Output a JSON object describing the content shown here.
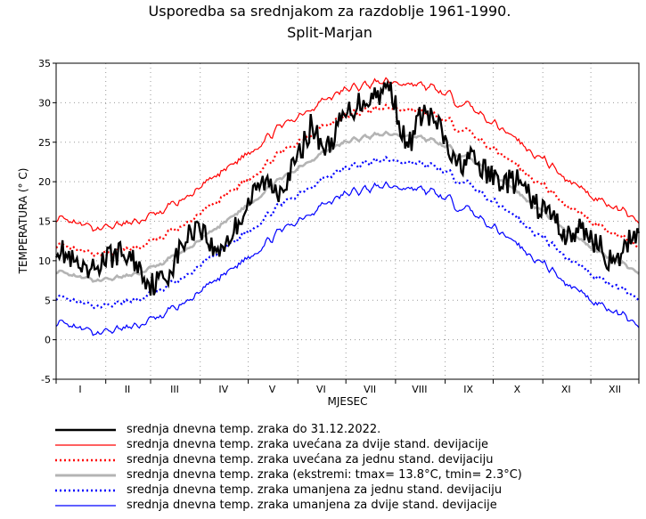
{
  "chart_data": {
    "type": "line",
    "title": "Usporedba sa srednjakom za razdoblje 1961-1990.",
    "subtitle": "Split-Marjan",
    "xlabel": "MJESEC",
    "ylabel": "TEMPERATURA (° C)",
    "ylim": [
      -5,
      35
    ],
    "yticks": [
      -5,
      0,
      5,
      10,
      15,
      20,
      25,
      30,
      35
    ],
    "xlim": [
      1,
      365
    ],
    "months": [
      "I",
      "II",
      "III",
      "IV",
      "V",
      "VI",
      "VII",
      "VIII",
      "IX",
      "X",
      "XI",
      "XII"
    ],
    "grid": true,
    "legend_position": "bottom",
    "climatology": {
      "t_max_day": 210,
      "t_min": 7.6,
      "t_max": 26.0,
      "std_dev_estimate": 3.3,
      "note": "mean curve and ±1/±2 std bands estimated from the figure"
    },
    "series": [
      {
        "key": "obs",
        "name": "srednja dnevna temp. zraka do 31.12.2022.",
        "color": "#000000",
        "style": "solid-thick",
        "x": [
          1,
          10,
          20,
          30,
          40,
          50,
          60,
          70,
          80,
          90,
          100,
          110,
          120,
          130,
          140,
          150,
          160,
          170,
          180,
          190,
          200,
          210,
          220,
          230,
          240,
          250,
          260,
          270,
          280,
          290,
          300,
          310,
          320,
          330,
          340,
          350,
          360,
          365
        ],
        "values": [
          12,
          10,
          8,
          10,
          11,
          10,
          7,
          8,
          12,
          15,
          11,
          13,
          17,
          20,
          19,
          22,
          27,
          24,
          28,
          30,
          31,
          32,
          24,
          29,
          27,
          22,
          23,
          21,
          20,
          20,
          17,
          16,
          13,
          14,
          12,
          9,
          13,
          14
        ]
      },
      {
        "key": "p2",
        "name": "srednja dnevna temp. zraka uvećana za dvije stand. devijacije",
        "color": "#ff0000",
        "style": "solid"
      },
      {
        "key": "p1",
        "name": "srednja dnevna temp. zraka uvećana za jednu stand. devijaciju",
        "color": "#ff0000",
        "style": "dotted"
      },
      {
        "key": "mean",
        "name": "srednja dnevna temp. zraka (ekstremi: tmax= 13.8°C, tmin= 2.3°C)",
        "color": "#b4b4b4",
        "style": "solid-thick"
      },
      {
        "key": "m1",
        "name": "srednja dnevna temp. zraka umanjena za jednu stand. devijaciju",
        "color": "#0000ff",
        "style": "dotted"
      },
      {
        "key": "m2",
        "name": "srednja dnevna temp. zraka umanjena za dvije stand. devijacije",
        "color": "#0000ff",
        "style": "solid"
      }
    ]
  }
}
